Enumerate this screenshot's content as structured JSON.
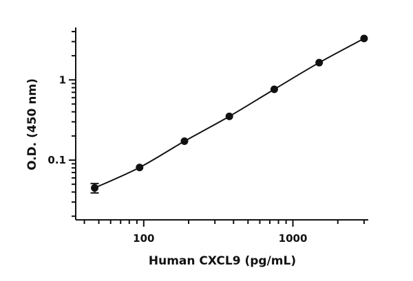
{
  "chart_data": {
    "type": "scatter",
    "xscale": "log",
    "yscale": "log",
    "xlabel": "Human CXCL9 (pg/mL)",
    "ylabel": "O.D. (450 nm)",
    "xlim": [
      35,
      3200
    ],
    "ylim": [
      0.018,
      4.5
    ],
    "x_tick_labels": [
      {
        "value": 100,
        "label": "100"
      },
      {
        "value": 1000,
        "label": "1000"
      }
    ],
    "y_tick_labels": [
      {
        "value": 0.1,
        "label": "0.1"
      },
      {
        "value": 1,
        "label": "1"
      }
    ],
    "series": [
      {
        "x": [
          46.9,
          93.8,
          187.5,
          375,
          750,
          1500,
          3000
        ],
        "y": [
          0.045,
          0.081,
          0.172,
          0.351,
          0.763,
          1.64,
          3.28
        ],
        "y_err": [
          0.006,
          0.003,
          0.005,
          0.008,
          0.015,
          0.03,
          0.05
        ]
      }
    ],
    "fit_curve": true,
    "grid": false,
    "marker_color": "#111111",
    "line_color": "#111111"
  }
}
